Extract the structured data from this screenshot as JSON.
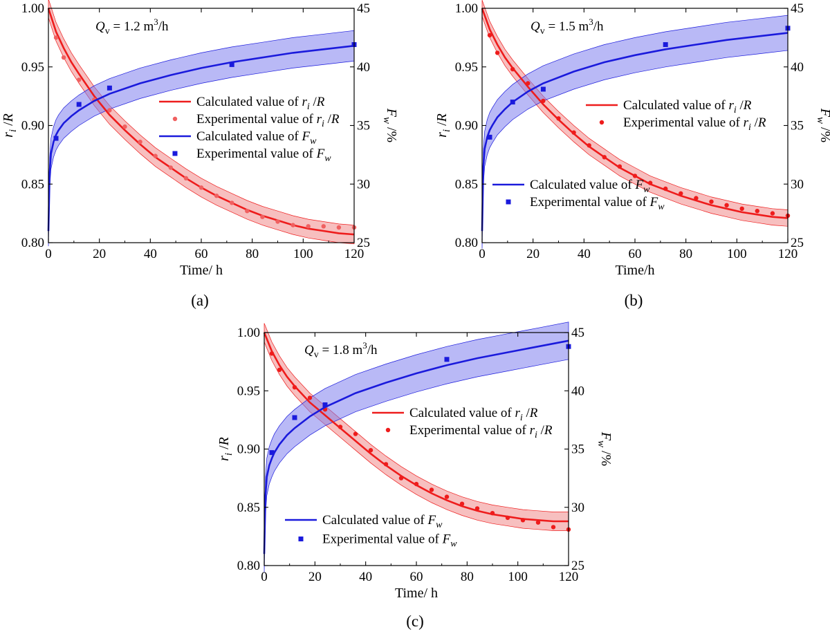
{
  "figure": {
    "legend_labels": {
      "calc_r": [
        "Calculated value of ",
        "r",
        "i",
        " /",
        "R"
      ],
      "exp_r": [
        "Experimental value of ",
        "r",
        "i",
        " /",
        "R"
      ],
      "calc_f": [
        "Calculated value of ",
        "F",
        "w"
      ],
      "exp_f": [
        "Experimental value of ",
        "F",
        "w"
      ]
    },
    "colors": {
      "red": "#ee1c1c",
      "red_band": "#f08a8a",
      "blue": "#1a1adc",
      "blue_band": "#8080ee"
    }
  },
  "chart_data": [
    {
      "type": "line",
      "panel_caption": "(a)",
      "flow_label": [
        "Q",
        "v",
        " = 1.2 m",
        "3",
        "/h"
      ],
      "xlabel": "Time/ h",
      "ylabel_left": [
        "r",
        "i",
        " /R"
      ],
      "ylabel_right": [
        "F",
        "w",
        " /%"
      ],
      "xlim": [
        0,
        120
      ],
      "ylim_left": [
        0.8,
        1.0
      ],
      "ylim_right": [
        25,
        45
      ],
      "x_ticks": [
        0,
        20,
        40,
        60,
        80,
        100,
        120
      ],
      "y_ticks_left": [
        "0.80",
        "0.85",
        "0.90",
        "0.95",
        "1.00"
      ],
      "y_ticks_right": [
        "25",
        "30",
        "35",
        "40",
        "45"
      ],
      "legend_order": [
        "calc_r",
        "exp_r",
        "calc_f",
        "exp_f"
      ],
      "series": [
        {
          "name": "Calculated value of ri/R",
          "axis": "left",
          "kind": "line",
          "color": "#ee1c1c",
          "x": [
            0,
            3,
            6,
            9,
            12,
            18,
            24,
            30,
            36,
            42,
            48,
            54,
            60,
            66,
            72,
            78,
            84,
            90,
            96,
            102,
            108,
            114,
            120
          ],
          "y": [
            1.0,
            0.98,
            0.966,
            0.954,
            0.944,
            0.925,
            0.909,
            0.896,
            0.884,
            0.873,
            0.864,
            0.855,
            0.847,
            0.84,
            0.834,
            0.828,
            0.823,
            0.819,
            0.815,
            0.812,
            0.81,
            0.808,
            0.807
          ],
          "band": 0.008
        },
        {
          "name": "Experimental value of ri/R",
          "axis": "left",
          "kind": "points",
          "color": "#f06060",
          "x": [
            3,
            6,
            12,
            18,
            24,
            30,
            36,
            42,
            48,
            54,
            60,
            66,
            72,
            78,
            84,
            90,
            96,
            102,
            108,
            114,
            120
          ],
          "y": [
            0.975,
            0.958,
            0.939,
            0.922,
            0.913,
            0.899,
            0.886,
            0.874,
            0.864,
            0.855,
            0.847,
            0.84,
            0.834,
            0.827,
            0.822,
            0.818,
            0.815,
            0.814,
            0.814,
            0.813,
            0.813
          ]
        },
        {
          "name": "Calculated value of Fw",
          "axis": "right",
          "kind": "line",
          "color": "#1a1adc",
          "x": [
            0,
            0.5,
            1,
            2,
            3,
            4,
            6,
            9,
            12,
            18,
            24,
            36,
            48,
            60,
            72,
            84,
            96,
            108,
            120
          ],
          "y": [
            26.0,
            31.0,
            32.6,
            33.6,
            34.2,
            34.6,
            35.2,
            35.8,
            36.3,
            37.1,
            37.7,
            38.6,
            39.3,
            39.9,
            40.4,
            40.8,
            41.2,
            41.5,
            41.8
          ],
          "band": 1.3
        },
        {
          "name": "Experimental value of Fw",
          "axis": "right",
          "kind": "squares",
          "color": "#1a1adc",
          "x": [
            3,
            12,
            24,
            72,
            120
          ],
          "y": [
            33.9,
            36.8,
            38.2,
            40.2,
            41.9
          ]
        }
      ]
    },
    {
      "type": "line",
      "panel_caption": "(b)",
      "flow_label": [
        "Q",
        "v",
        " = 1.5 m",
        "3",
        "/h"
      ],
      "xlabel": "Time/h",
      "ylabel_left": [
        "r",
        "i",
        " /R"
      ],
      "ylabel_right": [
        "F",
        "w",
        " /%"
      ],
      "xlim": [
        0,
        120
      ],
      "ylim_left": [
        0.8,
        1.0
      ],
      "ylim_right": [
        25,
        45
      ],
      "x_ticks": [
        0,
        20,
        40,
        60,
        80,
        100,
        120
      ],
      "y_ticks_left": [
        "0.80",
        "0.85",
        "0.90",
        "0.95",
        "1.00"
      ],
      "y_ticks_right": [
        "25",
        "30",
        "35",
        "40",
        "45"
      ],
      "legend_order": [
        "calc_r",
        "exp_r",
        "calc_f",
        "exp_f"
      ],
      "series": [
        {
          "name": "Calculated value of ri/R",
          "axis": "left",
          "kind": "line",
          "color": "#ee1c1c",
          "x": [
            0,
            3,
            6,
            9,
            12,
            18,
            24,
            30,
            36,
            42,
            48,
            54,
            60,
            66,
            72,
            78,
            84,
            90,
            96,
            102,
            108,
            114,
            120
          ],
          "y": [
            1.0,
            0.982,
            0.969,
            0.958,
            0.949,
            0.933,
            0.918,
            0.905,
            0.893,
            0.882,
            0.873,
            0.864,
            0.857,
            0.85,
            0.845,
            0.84,
            0.836,
            0.832,
            0.829,
            0.826,
            0.824,
            0.822,
            0.821
          ],
          "band": 0.007
        },
        {
          "name": "Experimental value of ri/R",
          "axis": "left",
          "kind": "points",
          "color": "#ee1c1c",
          "x": [
            3,
            6,
            12,
            18,
            24,
            30,
            36,
            42,
            48,
            54,
            60,
            66,
            72,
            78,
            84,
            90,
            96,
            102,
            108,
            114,
            120
          ],
          "y": [
            0.977,
            0.962,
            0.948,
            0.936,
            0.921,
            0.906,
            0.894,
            0.883,
            0.873,
            0.865,
            0.857,
            0.851,
            0.846,
            0.842,
            0.838,
            0.835,
            0.832,
            0.829,
            0.827,
            0.825,
            0.823
          ]
        },
        {
          "name": "Calculated value of Fw",
          "axis": "right",
          "kind": "line",
          "color": "#1a1adc",
          "x": [
            0,
            0.5,
            1,
            2,
            3,
            4,
            6,
            9,
            12,
            18,
            24,
            36,
            48,
            60,
            72,
            84,
            96,
            108,
            120
          ],
          "y": [
            26.0,
            31.5,
            33.0,
            34.0,
            34.6,
            35.0,
            35.7,
            36.4,
            37.0,
            37.9,
            38.6,
            39.6,
            40.4,
            41.0,
            41.5,
            41.9,
            42.3,
            42.6,
            42.9
          ],
          "band": 1.5
        },
        {
          "name": "Experimental value of Fw",
          "axis": "right",
          "kind": "squares",
          "color": "#1a1adc",
          "x": [
            3,
            12,
            24,
            72,
            120
          ],
          "y": [
            34.0,
            37.0,
            38.1,
            41.9,
            43.3
          ]
        }
      ]
    },
    {
      "type": "line",
      "panel_caption": "(c)",
      "flow_label": [
        "Q",
        "v",
        " = 1.8 m",
        "3",
        "/h"
      ],
      "xlabel": "Time/ h",
      "ylabel_left": [
        "r",
        "i",
        " /R"
      ],
      "ylabel_right": [
        "F",
        "w",
        " /%"
      ],
      "xlim": [
        0,
        120
      ],
      "ylim_left": [
        0.8,
        1.0
      ],
      "ylim_right": [
        25,
        45
      ],
      "x_ticks": [
        0,
        20,
        40,
        60,
        80,
        100,
        120
      ],
      "y_ticks_left": [
        "0.80",
        "0.85",
        "0.90",
        "0.95",
        "1.00"
      ],
      "y_ticks_right": [
        "25",
        "30",
        "35",
        "40",
        "45"
      ],
      "legend_order": [
        "calc_r",
        "exp_r",
        "calc_f",
        "exp_f"
      ],
      "series": [
        {
          "name": "Calculated value of ri/R",
          "axis": "left",
          "kind": "line",
          "color": "#ee1c1c",
          "x": [
            0,
            3,
            6,
            9,
            12,
            18,
            24,
            30,
            36,
            42,
            48,
            54,
            60,
            66,
            72,
            78,
            84,
            90,
            96,
            102,
            108,
            114,
            120
          ],
          "y": [
            1.0,
            0.984,
            0.972,
            0.962,
            0.954,
            0.94,
            0.929,
            0.918,
            0.907,
            0.896,
            0.886,
            0.877,
            0.869,
            0.862,
            0.856,
            0.851,
            0.847,
            0.844,
            0.842,
            0.84,
            0.839,
            0.838,
            0.838
          ],
          "band": 0.008
        },
        {
          "name": "Experimental value of ri/R",
          "axis": "left",
          "kind": "points",
          "color": "#ee1c1c",
          "x": [
            3,
            6,
            12,
            18,
            24,
            30,
            36,
            42,
            48,
            54,
            60,
            66,
            72,
            78,
            84,
            90,
            96,
            102,
            108,
            114,
            120
          ],
          "y": [
            0.982,
            0.968,
            0.953,
            0.944,
            0.934,
            0.919,
            0.913,
            0.899,
            0.887,
            0.875,
            0.87,
            0.865,
            0.859,
            0.853,
            0.849,
            0.845,
            0.841,
            0.839,
            0.837,
            0.833,
            0.831
          ]
        },
        {
          "name": "Calculated value of Fw",
          "axis": "right",
          "kind": "line",
          "color": "#1a1adc",
          "x": [
            0,
            0.5,
            1,
            2,
            3,
            4,
            6,
            9,
            12,
            18,
            24,
            36,
            48,
            60,
            72,
            84,
            96,
            108,
            120
          ],
          "y": [
            26.0,
            31.0,
            32.6,
            33.6,
            34.2,
            34.7,
            35.4,
            36.2,
            36.8,
            37.8,
            38.6,
            39.8,
            40.7,
            41.5,
            42.2,
            42.8,
            43.3,
            43.8,
            44.3
          ],
          "band": 1.6
        },
        {
          "name": "Experimental value of Fw",
          "axis": "right",
          "kind": "squares",
          "color": "#1a1adc",
          "x": [
            3,
            12,
            24,
            72,
            120
          ],
          "y": [
            34.7,
            37.7,
            38.8,
            42.7,
            43.8
          ]
        }
      ]
    }
  ]
}
